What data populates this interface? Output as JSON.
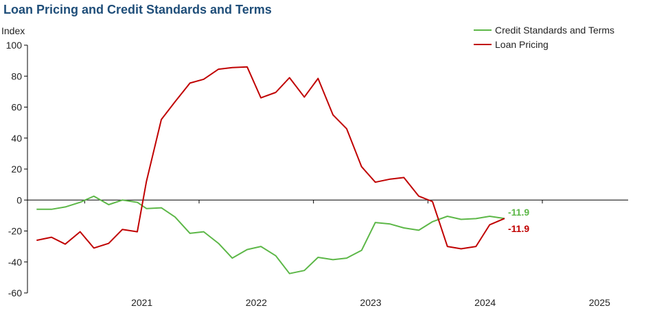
{
  "chart_data": {
    "type": "line",
    "title": "Loan Pricing  and Credit Standards and Terms",
    "ylabel": "Index",
    "xlabel": "",
    "ylim": [
      -60,
      100
    ],
    "yticks": [
      100,
      80,
      60,
      40,
      20,
      0,
      -20,
      -40,
      -60
    ],
    "xlim": [
      2020.5,
      2025.75
    ],
    "xticks": [
      {
        "label": "2021",
        "year": 2021
      },
      {
        "label": "2022",
        "year": 2022
      },
      {
        "label": "2023",
        "year": 2023
      },
      {
        "label": "2024",
        "year": 2024
      },
      {
        "label": "2025",
        "year": 2025
      }
    ],
    "grid": false,
    "legend_position": "top-right",
    "x": [
      2020.58,
      2020.71,
      2020.83,
      2020.96,
      2021.08,
      2021.21,
      2021.33,
      2021.46,
      2021.54,
      2021.67,
      2021.79,
      2021.92,
      2022.04,
      2022.17,
      2022.29,
      2022.42,
      2022.54,
      2022.67,
      2022.79,
      2022.92,
      2023.04,
      2023.17,
      2023.29,
      2023.42,
      2023.54,
      2023.67,
      2023.79,
      2023.92,
      2024.04,
      2024.17,
      2024.29,
      2024.42,
      2024.54,
      2024.67
    ],
    "series": [
      {
        "name": "Credit Standards and Terms",
        "color": "#5cb747",
        "values": [
          -6,
          -6,
          -4.5,
          -1.5,
          2.5,
          -3,
          0,
          -1.5,
          -5.5,
          -5,
          -11,
          -21.5,
          -20.5,
          -28,
          -37.5,
          -32,
          -30,
          -36,
          -47.5,
          -45.5,
          -37,
          -38.5,
          -37.5,
          -32.5,
          -14.5,
          -15.5,
          -18,
          -19.5,
          -14,
          -10.5,
          -12.5,
          -12,
          -10.5,
          -11.9
        ],
        "end_label": "-11.9"
      },
      {
        "name": "Loan Pricing",
        "color": "#c00000",
        "values": [
          -26,
          -24,
          -28.5,
          -20.5,
          -31,
          -28,
          -19,
          -20.5,
          12,
          52,
          63.5,
          75.5,
          78,
          84.5,
          85.5,
          86,
          66,
          69.5,
          79,
          66.5,
          78.5,
          55,
          46,
          21.5,
          11.5,
          13.5,
          14.5,
          2.5,
          -1,
          -30,
          -31.5,
          -30,
          -16,
          -11.9
        ],
        "end_label": "-11.9"
      }
    ]
  }
}
